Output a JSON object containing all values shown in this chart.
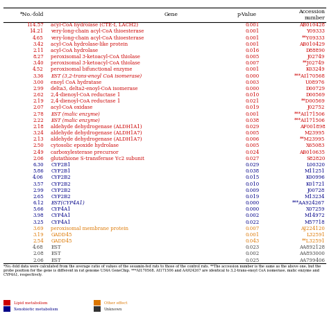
{
  "headers": [
    "*No.-fold",
    "Gene",
    "p-Value",
    "Accession\nnumber"
  ],
  "rows": [
    [
      "114.57",
      "acyl-CoA hydrolase (CTE-I, LACH2)",
      "0.001",
      "AB010428",
      "red"
    ],
    [
      "14.21",
      "very-long-chain acyl-CoA thioesterase",
      "0.001",
      "Y09333",
      "red"
    ],
    [
      "4.65",
      "very-long-chain acyl-CoA thioesterase",
      "0.001",
      "**Y09333",
      "red"
    ],
    [
      "3.42",
      "acyl-CoA hydrolase-like protein",
      "0.001",
      "AB010429",
      "red"
    ],
    [
      "2.11",
      "acyl-CoA hydrolase",
      "0.016",
      "D88890",
      "red"
    ],
    [
      "8.27",
      "peroxisomal 3-ketoacyl-CoA thiolase",
      "0.005",
      "J02749",
      "red"
    ],
    [
      "3.40",
      "peroxisomal 3-ketoacyl-CoA thiolase",
      "0.007",
      "**J02749",
      "red"
    ],
    [
      "4.52",
      "peroxisomal bifunctional enzyme",
      "0.001",
      "K03249",
      "red"
    ],
    [
      "3.36",
      "EST (3,2-trans-enoyl CoA isomerase)",
      "0.000",
      "***AI170568",
      "red"
    ],
    [
      "3.00",
      "enoyl CoA hydratase",
      "0.003",
      "U08976",
      "red"
    ],
    [
      "2.99",
      "delta3, delta2-enoyl-CoA isomerase",
      "0.000",
      "D00729",
      "red"
    ],
    [
      "2.62",
      "2,4-dienoyl-CoA reductase 1",
      "0.010",
      "D00569",
      "red"
    ],
    [
      "2.19",
      "2,4-dienoyl-CoA reductase 1",
      "0.021",
      "**D00569",
      "red"
    ],
    [
      "2.07",
      "acyl-CoA oxidase",
      "0.019",
      "J02752",
      "red"
    ],
    [
      "2.78",
      "EST (malic enzyme)",
      "0.001",
      "***AI171506",
      "red"
    ],
    [
      "2.22",
      "EST (malic enzyme)",
      "0.038",
      "***AI171506",
      "red"
    ],
    [
      "2.18",
      "aldehyde dehydrogenase (ALDH1A1)",
      "0.029",
      "AF001898",
      "red"
    ],
    [
      "3.24",
      "aldehyde dehydrogenase (ALDH1A7)",
      "0.005",
      "M23995",
      "red"
    ],
    [
      "2.13",
      "aldehyde dehydrogenase (ALDH1A7)",
      "0.006",
      "**M23995",
      "red"
    ],
    [
      "2.50",
      "cytosolic epoxide hydrolase",
      "0.005",
      "X65083",
      "red"
    ],
    [
      "2.49",
      "carboxylesterase precursor",
      "0.024",
      "AB010635",
      "red"
    ],
    [
      "2.06",
      "glutathione S-transferase Yc2 subunit",
      "0.027",
      "S82820",
      "red"
    ],
    [
      "6.30",
      "CYP2B1",
      "0.029",
      "L00320",
      "blue"
    ],
    [
      "5.86",
      "CYP2B1",
      "0.038",
      "M11251",
      "blue"
    ],
    [
      "4.06",
      "CYP2B2",
      "0.015",
      "K00996",
      "blue"
    ],
    [
      "3.57",
      "CYP2B2",
      "0.010",
      "K01721",
      "blue"
    ],
    [
      "2.99",
      "CYP2B2",
      "0.009",
      "J00728",
      "blue"
    ],
    [
      "2.65",
      "CYP2B2",
      "0.019",
      "M13234",
      "blue"
    ],
    [
      "6.12",
      "EST(CYP4A1)",
      "0.000",
      "***AA924267",
      "blue"
    ],
    [
      "5.66",
      "CYP4A1",
      "0.000",
      "X07259",
      "blue"
    ],
    [
      "3.98",
      "CYP4A1",
      "0.002",
      "M14972",
      "blue"
    ],
    [
      "3.25",
      "CYP4A1",
      "0.022",
      "M57718",
      "blue"
    ],
    [
      "3.69",
      "peroxisomal membrane protein",
      "0.007",
      "AJ224120",
      "orange"
    ],
    [
      "3.19",
      "GADD45",
      "0.001",
      "L32591",
      "orange"
    ],
    [
      "2.54",
      "GADD45",
      "0.043",
      "**L32591",
      "orange"
    ],
    [
      "4.68",
      "EST",
      "0.023",
      "AA892128",
      "black"
    ],
    [
      "2.08",
      "EST",
      "0.002",
      "AA893000",
      "black"
    ],
    [
      "2.06",
      "EST",
      "0.025",
      "AA799406",
      "black"
    ]
  ],
  "footnote": "*No.-fold data were calculated from the average ratio of values of the sesamin-fed rats to those of the control rats. **The accession number is the same as the above one, but the probe position for the gene is different in rat genome U34A GeneChip. ***AI170568, AI171506 and AA924267 are identical to 3,2-trans-enoyl CoA isomerase, malic enzyme and CYP4A1, respectively.",
  "legend": [
    {
      "label": "Lipid metabolism",
      "color": "#cc0000"
    },
    {
      "label": "Other effect",
      "color": "#dd7700"
    },
    {
      "label": "Xenobiotic metabolism",
      "color": "#000088"
    },
    {
      "label": "Unknown",
      "color": "#333333"
    }
  ],
  "bg_color": "#ffffff",
  "color_map": {
    "red": "#cc0000",
    "blue": "#000088",
    "orange": "#dd7700",
    "black": "#444444"
  },
  "font_size": 5.0,
  "header_font_size": 5.5
}
